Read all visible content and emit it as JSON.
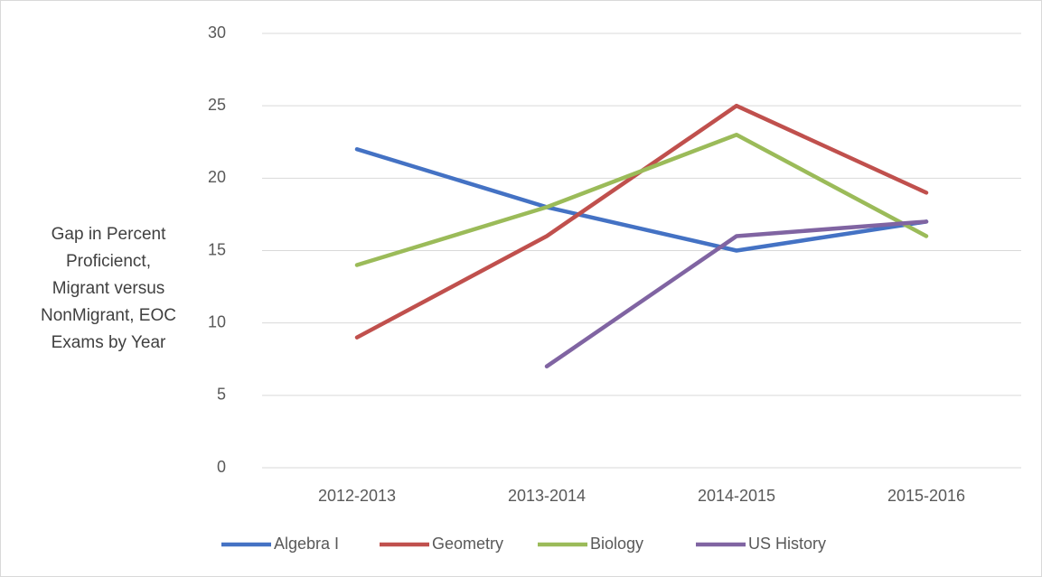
{
  "chart_data": {
    "type": "line",
    "ylabel": "Gap in Percent Proficienct, Migrant versus NonMigrant, EOC Exams by Year",
    "categories": [
      "2012-2013",
      "2013-2014",
      "2014-2015",
      "2015-2016"
    ],
    "series": [
      {
        "name": "Algebra I",
        "color": "#4472c4",
        "values": [
          22,
          18,
          15,
          17
        ]
      },
      {
        "name": "Geometry",
        "color": "#c0504d",
        "values": [
          9,
          16,
          25,
          19
        ]
      },
      {
        "name": "Biology",
        "color": "#9bbb59",
        "values": [
          14,
          18,
          23,
          16
        ]
      },
      {
        "name": "US History",
        "color": "#8064a2",
        "values": [
          null,
          7,
          16,
          17
        ]
      }
    ],
    "ylim": [
      0,
      30
    ],
    "yticks": [
      0,
      5,
      10,
      15,
      20,
      25,
      30
    ],
    "grid": true,
    "legend": "bottom"
  }
}
